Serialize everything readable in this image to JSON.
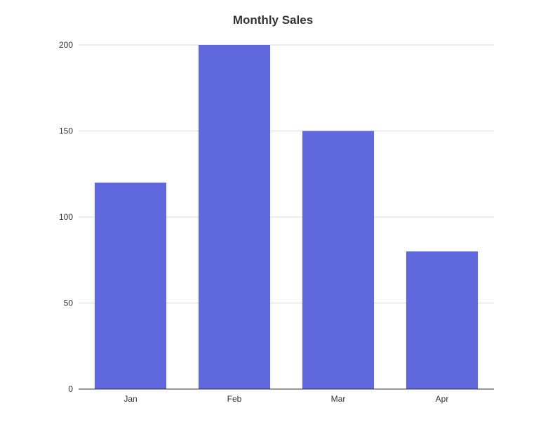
{
  "chart_data": {
    "type": "bar",
    "title": "Monthly Sales",
    "xlabel": "",
    "ylabel": "",
    "categories": [
      "Jan",
      "Feb",
      "Mar",
      "Apr"
    ],
    "values": [
      120,
      200,
      150,
      80
    ],
    "ylim": [
      0,
      200
    ],
    "yticks": [
      0,
      50,
      100,
      150,
      200
    ],
    "grid": true,
    "bar_color": "#6068de",
    "legend": "none"
  }
}
